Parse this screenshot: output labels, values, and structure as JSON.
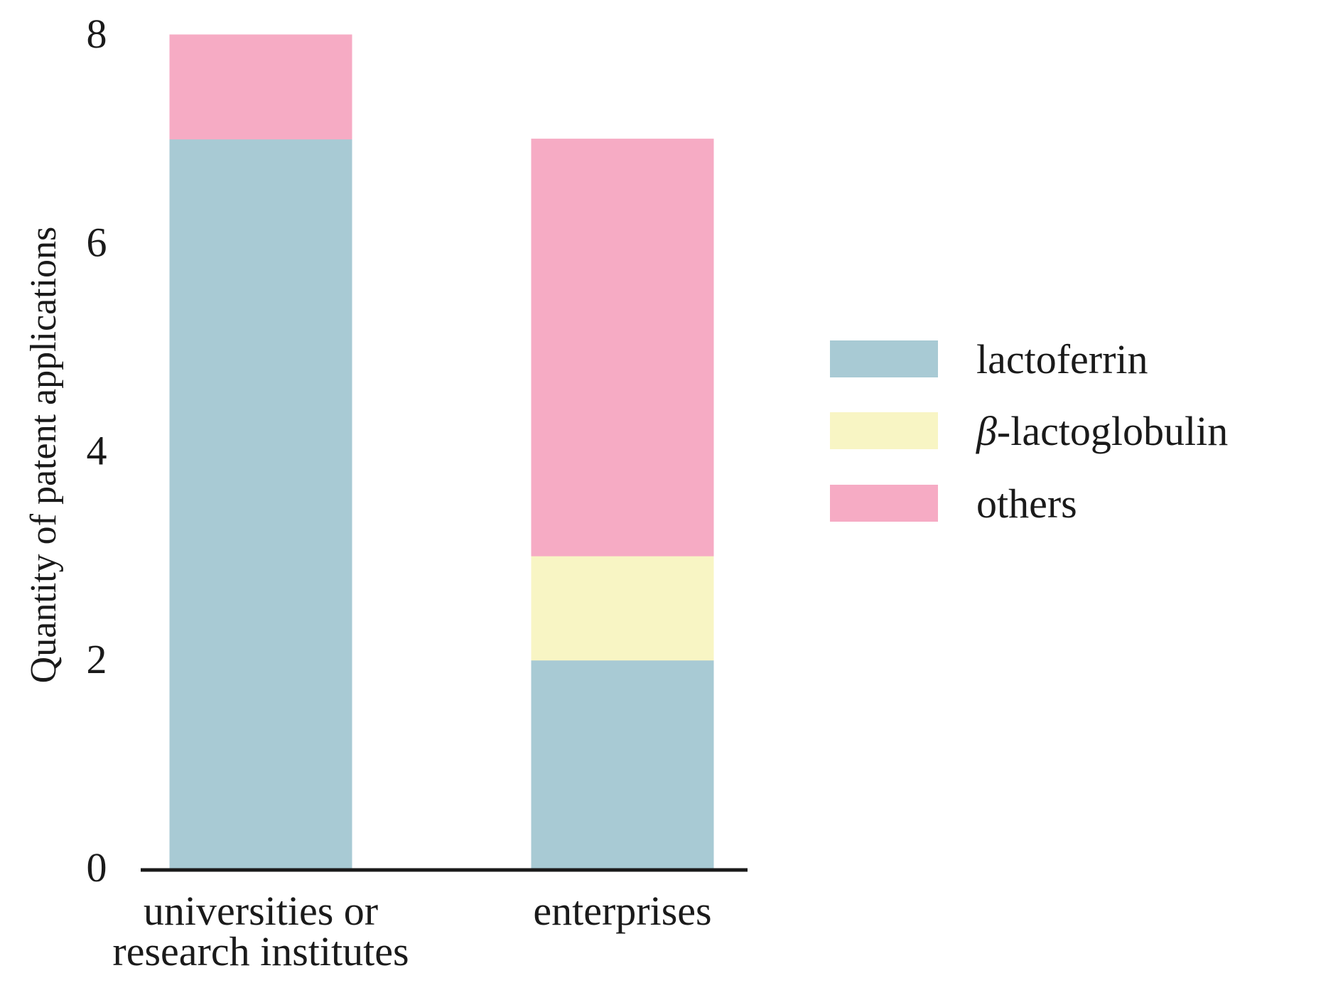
{
  "chart_data": {
    "type": "bar",
    "stacked": true,
    "ylabel": "Quantity of patent applications",
    "ylim": [
      0,
      8
    ],
    "yticks": [
      0,
      2,
      4,
      6,
      8
    ],
    "grid": false,
    "legend_position": "right",
    "categories": [
      [
        "universities or",
        "research institutes"
      ],
      [
        "enterprises"
      ]
    ],
    "series": [
      {
        "name": "lactoferrin",
        "name_prefix": "",
        "name_rest": "lactoferrin",
        "color": "#a8cad4",
        "values": [
          7,
          2
        ]
      },
      {
        "name": "β-lactoglobulin",
        "name_prefix": "β",
        "name_rest": "-lactoglobulin",
        "color": "#f8f5c4",
        "values": [
          0,
          1
        ]
      },
      {
        "name": "others",
        "name_prefix": "",
        "name_rest": "others",
        "color": "#f6abc4",
        "values": [
          1,
          4
        ]
      }
    ]
  }
}
